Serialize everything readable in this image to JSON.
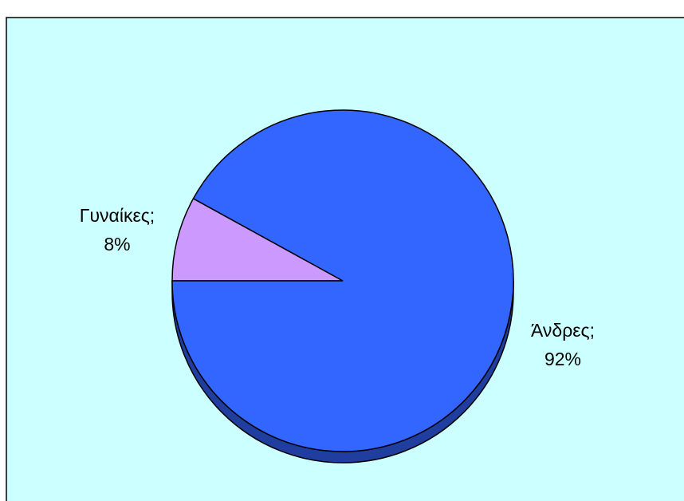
{
  "chart_data": {
    "type": "pie",
    "title": "",
    "categories": [
      "Γυναίκες",
      "Άνδρες"
    ],
    "values": [
      8,
      92
    ],
    "labels": [
      {
        "name": "Γυναίκες;",
        "value": "8%"
      },
      {
        "name": "Άνδρες;",
        "value": "92%"
      }
    ],
    "colors": {
      "background": "#ccffff",
      "Γυναίκες": "#cc99ff",
      "Άνδρες": "#3366ff",
      "Άνδρες_side": "#1f3ea0",
      "outline": "#000000"
    },
    "legend": "none",
    "style": "3d-pie"
  }
}
